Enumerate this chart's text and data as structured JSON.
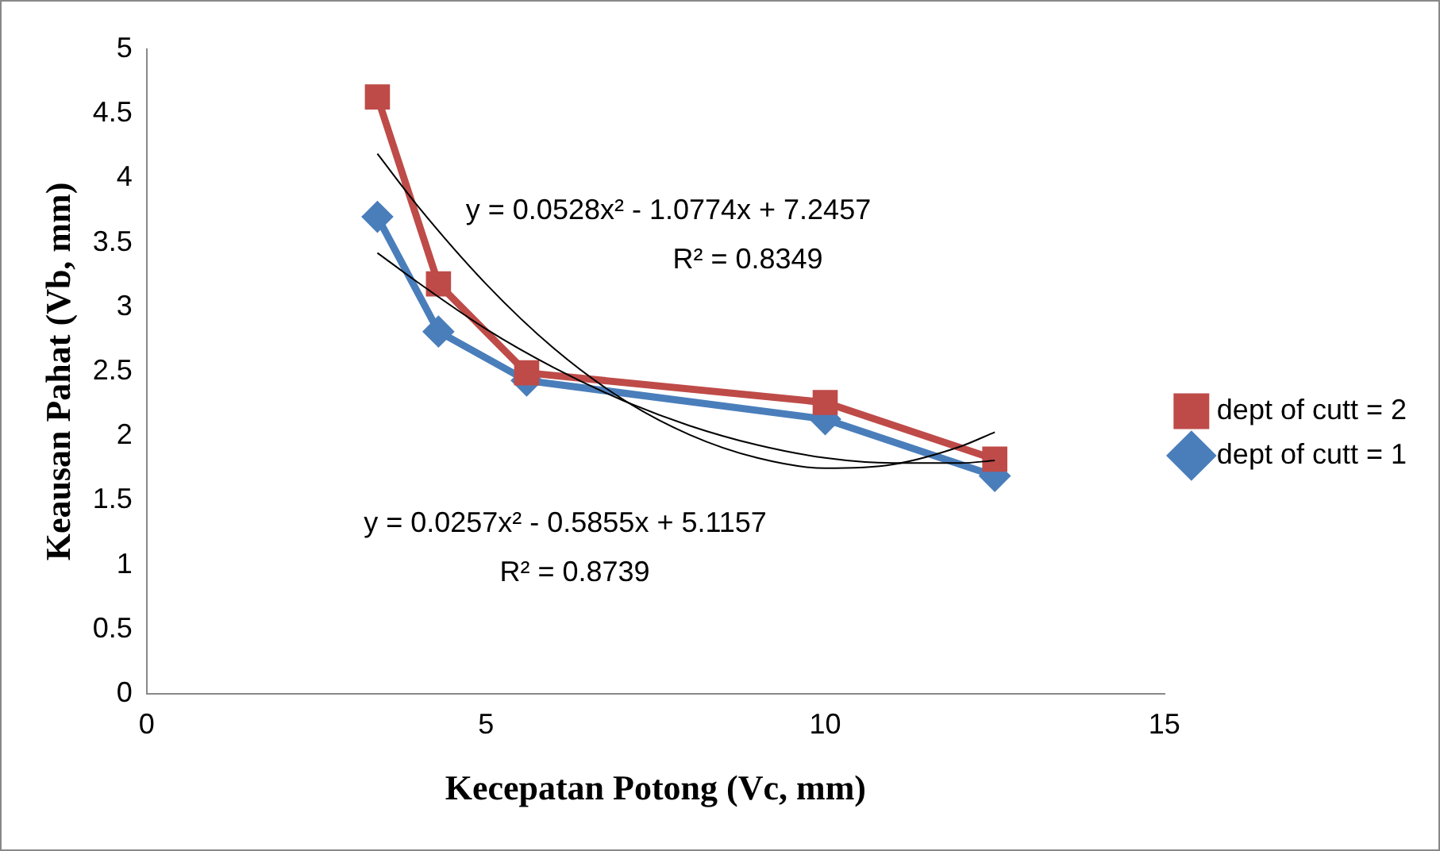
{
  "chart_data": {
    "type": "line",
    "xlabel": "Kecepatan Potong (Vc, mm)",
    "ylabel": "Keausan Pahat (Vb, mm)",
    "xlim": [
      0,
      15
    ],
    "xticks": [
      0,
      5,
      10,
      15
    ],
    "ylim": [
      0,
      5
    ],
    "yticks": [
      0,
      0.5,
      1,
      1.5,
      2,
      2.5,
      3,
      3.5,
      4,
      4.5,
      5
    ],
    "grid": false,
    "legend": "right",
    "series": [
      {
        "name": "dept of cutt = 1",
        "color": "#4a7ebb",
        "marker": "diamond",
        "x": [
          3.4,
          4.3,
          5.6,
          10,
          12.5
        ],
        "values": [
          3.7,
          2.81,
          2.43,
          2.13,
          1.69
        ]
      },
      {
        "name": "dept of cutt = 2",
        "color": "#be4b48",
        "marker": "square",
        "x": [
          3.4,
          4.3,
          5.6,
          10,
          12.5
        ],
        "values": [
          4.63,
          3.18,
          2.49,
          2.26,
          1.82
        ]
      },
      {
        "type": "line",
        "color": "#000000",
        "marker": "none",
        "x": [
          3.4,
          4,
          5,
          6,
          7,
          8,
          9,
          10,
          11,
          12,
          12.5
        ],
        "values": [
          4.19,
          3.78,
          3.18,
          2.68,
          2.29,
          2.01,
          1.83,
          1.75,
          1.78,
          1.92,
          2.03
        ]
      },
      {
        "type": "line",
        "color": "#000000",
        "marker": "none",
        "x": [
          3.4,
          4,
          5,
          6,
          7,
          8,
          9,
          10,
          11,
          12,
          12.5
        ],
        "values": [
          3.42,
          3.19,
          2.83,
          2.53,
          2.28,
          2.08,
          1.93,
          1.83,
          1.79,
          1.79,
          1.81
        ]
      }
    ],
    "annotations": [
      "y = 0.0528x² - 1.0774x + 7.2457",
      "R² = 0.8349",
      "y = 0.0257x² - 0.5855x + 5.1157",
      "R² = 0.8739"
    ]
  }
}
